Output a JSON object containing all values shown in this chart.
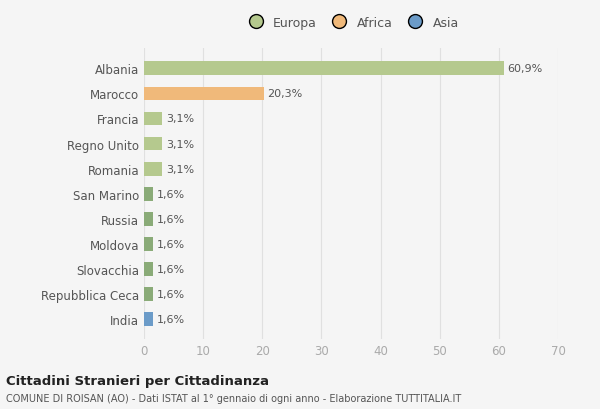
{
  "categories": [
    "Albania",
    "Marocco",
    "Francia",
    "Regno Unito",
    "Romania",
    "San Marino",
    "Russia",
    "Moldova",
    "Slovacchia",
    "Repubblica Ceca",
    "India"
  ],
  "values": [
    60.9,
    20.3,
    3.1,
    3.1,
    3.1,
    1.6,
    1.6,
    1.6,
    1.6,
    1.6,
    1.6
  ],
  "labels": [
    "60,9%",
    "20,3%",
    "3,1%",
    "3,1%",
    "3,1%",
    "1,6%",
    "1,6%",
    "1,6%",
    "1,6%",
    "1,6%",
    "1,6%"
  ],
  "colors": [
    "#b5c98e",
    "#f0b97a",
    "#b5c98e",
    "#b5c98e",
    "#b5c98e",
    "#8aab78",
    "#8aab78",
    "#8aab78",
    "#8aab78",
    "#8aab78",
    "#6b9bc8"
  ],
  "legend_labels": [
    "Europa",
    "Africa",
    "Asia"
  ],
  "legend_colors": [
    "#b5c98e",
    "#f0b97a",
    "#6b9bc8"
  ],
  "xlim": [
    0,
    70
  ],
  "xticks": [
    0,
    10,
    20,
    30,
    40,
    50,
    60,
    70
  ],
  "title": "Cittadini Stranieri per Cittadinanza",
  "subtitle": "COMUNE DI ROISAN (AO) - Dati ISTAT al 1° gennaio di ogni anno - Elaborazione TUTTITALIA.IT",
  "background_color": "#f5f5f5",
  "grid_color": "#e0e0e0",
  "bar_label_color": "#555555",
  "ytick_color": "#555555",
  "xtick_color": "#aaaaaa"
}
